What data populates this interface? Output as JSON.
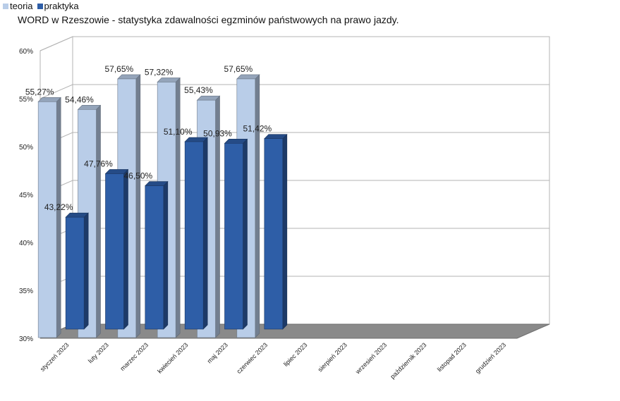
{
  "chart_data": {
    "type": "bar",
    "title": "WORD w Rzeszowie - statystyka zdawalności egzminów państwowych na prawo jazdy.",
    "categories": [
      "styczeń 2023",
      "luty 2023",
      "marzec 2023",
      "kwiecień 2023",
      "maj 2023",
      "czerwiec 2023",
      "lipiec 2023",
      "sierpień 2023",
      "wrzesień 2023",
      "październik 2023",
      "listopad 2023",
      "grudzień 2023"
    ],
    "series": [
      {
        "name": "teoria",
        "values": [
          55.27,
          54.46,
          57.65,
          57.32,
          55.43,
          57.65,
          null,
          null,
          null,
          null,
          null,
          null
        ],
        "labels": [
          "55,27%",
          "54,46%",
          "57,65%",
          "57,32%",
          "55,43%",
          "57,65%"
        ]
      },
      {
        "name": "praktyka",
        "values": [
          43.22,
          47.76,
          46.5,
          51.1,
          50.93,
          51.42,
          null,
          null,
          null,
          null,
          null,
          null
        ],
        "labels": [
          "43,22%",
          "47,76%",
          "46,50%",
          "51,10%",
          "50,93%",
          "51,42%"
        ]
      }
    ],
    "ylim": [
      30,
      60
    ],
    "yticks": [
      "30%",
      "35%",
      "40%",
      "45%",
      "50%",
      "55%",
      "60%"
    ],
    "grid": true,
    "legend_position": "top-left",
    "colors": {
      "teoria": "#b9cde8",
      "praktyka": "#2e5ea7"
    }
  }
}
